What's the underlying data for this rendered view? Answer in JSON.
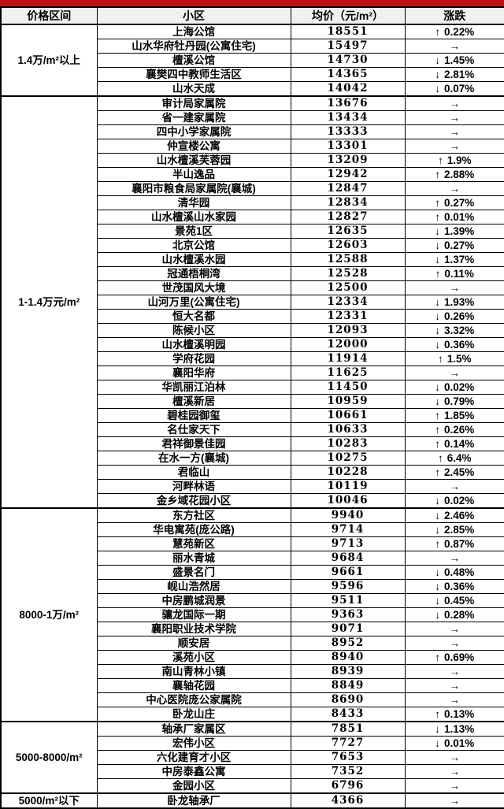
{
  "top_bar": {
    "color": "#c11115"
  },
  "table": {
    "headers": [
      "价格区间",
      "小区",
      "均价（元/m²）",
      "涨跌"
    ],
    "arrow_glyphs": {
      "up": "↑",
      "down": "↓",
      "flat": "→"
    },
    "colors": {
      "up": "#a90d0d",
      "down": "#76b44b",
      "flat": "#000000",
      "header_bg": "#f0f0f0"
    },
    "groups": [
      {
        "range": "1.4万/m²以上",
        "rows": [
          {
            "name": "上海公馆",
            "price": "18551",
            "dir": "up",
            "pct": "0.22%"
          },
          {
            "name": "山水华府牡丹园(公寓住宅)",
            "price": "15497",
            "dir": "flat",
            "pct": ""
          },
          {
            "name": "檀溪公馆",
            "price": "14730",
            "dir": "down",
            "pct": "1.45%"
          },
          {
            "name": "襄樊四中教师生活区",
            "price": "14365",
            "dir": "down",
            "pct": "2.81%"
          },
          {
            "name": "山水天成",
            "price": "14042",
            "dir": "down",
            "pct": "0.07%"
          }
        ]
      },
      {
        "range": "1-1.4万元/m²",
        "rows": [
          {
            "name": "审计局家属院",
            "price": "13676",
            "dir": "flat",
            "pct": ""
          },
          {
            "name": "省一建家属院",
            "price": "13434",
            "dir": "flat",
            "pct": ""
          },
          {
            "name": "四中小学家属院",
            "price": "13333",
            "dir": "flat",
            "pct": ""
          },
          {
            "name": "仲宣楼公寓",
            "price": "13301",
            "dir": "flat",
            "pct": ""
          },
          {
            "name": "山水檀溪芙蓉园",
            "price": "13209",
            "dir": "up",
            "pct": "1.9%"
          },
          {
            "name": "半山逸品",
            "price": "12942",
            "dir": "up",
            "pct": "2.88%"
          },
          {
            "name": "襄阳市粮食局家属院(襄城)",
            "price": "12847",
            "dir": "flat",
            "pct": ""
          },
          {
            "name": "清华园",
            "price": "12834",
            "dir": "up",
            "pct": "0.27%"
          },
          {
            "name": "山水檀溪山水家园",
            "price": "12827",
            "dir": "up",
            "pct": "0.01%"
          },
          {
            "name": "景苑1区",
            "price": "12635",
            "dir": "down",
            "pct": "1.39%"
          },
          {
            "name": "北京公馆",
            "price": "12603",
            "dir": "down",
            "pct": "0.27%"
          },
          {
            "name": "山水檀溪水园",
            "price": "12588",
            "dir": "down",
            "pct": "1.37%"
          },
          {
            "name": "冠通梧桐湾",
            "price": "12528",
            "dir": "up",
            "pct": "0.11%"
          },
          {
            "name": "世茂国风大境",
            "price": "12500",
            "dir": "flat",
            "pct": ""
          },
          {
            "name": "山河万里(公寓住宅)",
            "price": "12334",
            "dir": "down",
            "pct": "1.93%"
          },
          {
            "name": "恒大名都",
            "price": "12331",
            "dir": "down",
            "pct": "0.26%"
          },
          {
            "name": "陈候小区",
            "price": "12093",
            "dir": "down",
            "pct": "3.32%"
          },
          {
            "name": "山水檀溪明园",
            "price": "12000",
            "dir": "down",
            "pct": "0.36%"
          },
          {
            "name": "学府花园",
            "price": "11914",
            "dir": "up",
            "pct": "1.5%"
          },
          {
            "name": "襄阳华府",
            "price": "11625",
            "dir": "flat",
            "pct": ""
          },
          {
            "name": "华凯丽江泊林",
            "price": "11450",
            "dir": "down",
            "pct": "0.02%"
          },
          {
            "name": "檀溪新居",
            "price": "10959",
            "dir": "down",
            "pct": "0.79%"
          },
          {
            "name": "碧桂园御玺",
            "price": "10661",
            "dir": "up",
            "pct": "1.85%"
          },
          {
            "name": "名仕家天下",
            "price": "10633",
            "dir": "up",
            "pct": "0.26%"
          },
          {
            "name": "君祥御景佳园",
            "price": "10283",
            "dir": "up",
            "pct": "0.14%"
          },
          {
            "name": "在水一方(襄城)",
            "price": "10275",
            "dir": "up",
            "pct": "6.4%"
          },
          {
            "name": "君临山",
            "price": "10228",
            "dir": "up",
            "pct": "2.45%"
          },
          {
            "name": "河畔林语",
            "price": "10119",
            "dir": "flat",
            "pct": ""
          },
          {
            "name": "金乡域花园小区",
            "price": "10046",
            "dir": "down",
            "pct": "0.02%"
          }
        ]
      },
      {
        "range": "8000-1万/m²",
        "rows": [
          {
            "name": "东方社区",
            "price": "9940",
            "dir": "down",
            "pct": "2.46%"
          },
          {
            "name": "华电寓苑(庞公路)",
            "price": "9714",
            "dir": "down",
            "pct": "2.85%"
          },
          {
            "name": "慧苑新区",
            "price": "9713",
            "dir": "up",
            "pct": "0.87%"
          },
          {
            "name": "丽水青城",
            "price": "9684",
            "dir": "flat",
            "pct": ""
          },
          {
            "name": "盛景名门",
            "price": "9661",
            "dir": "down",
            "pct": "0.48%"
          },
          {
            "name": "岘山浩然居",
            "price": "9596",
            "dir": "down",
            "pct": "0.36%"
          },
          {
            "name": "中房鹏城润景",
            "price": "9511",
            "dir": "down",
            "pct": "0.45%"
          },
          {
            "name": "骧龙国际一期",
            "price": "9363",
            "dir": "down",
            "pct": "0.28%"
          },
          {
            "name": "襄阳职业技术学院",
            "price": "9071",
            "dir": "flat",
            "pct": ""
          },
          {
            "name": "顺安居",
            "price": "8952",
            "dir": "flat",
            "pct": ""
          },
          {
            "name": "溪苑小区",
            "price": "8940",
            "dir": "up",
            "pct": "0.69%"
          },
          {
            "name": "南山青林小镇",
            "price": "8939",
            "dir": "flat",
            "pct": ""
          },
          {
            "name": "襄轴花园",
            "price": "8849",
            "dir": "flat",
            "pct": ""
          },
          {
            "name": "中心医院庞公家属院",
            "price": "8690",
            "dir": "flat",
            "pct": ""
          },
          {
            "name": "卧龙山庄",
            "price": "8433",
            "dir": "up",
            "pct": "0.13%"
          }
        ]
      },
      {
        "range": "5000-8000/m²",
        "rows": [
          {
            "name": "轴承厂家属区",
            "price": "7851",
            "dir": "down",
            "pct": "1.13%"
          },
          {
            "name": "宏伟小区",
            "price": "7727",
            "dir": "down",
            "pct": "0.01%"
          },
          {
            "name": "六化建育才小区",
            "price": "7653",
            "dir": "flat",
            "pct": ""
          },
          {
            "name": "中房泰鑫公寓",
            "price": "7352",
            "dir": "flat",
            "pct": ""
          },
          {
            "name": "金园小区",
            "price": "6796",
            "dir": "flat",
            "pct": ""
          }
        ]
      },
      {
        "range": "5000/m²以下",
        "rows": [
          {
            "name": "卧龙轴承厂",
            "price": "4366",
            "dir": "flat",
            "pct": ""
          }
        ]
      }
    ]
  }
}
